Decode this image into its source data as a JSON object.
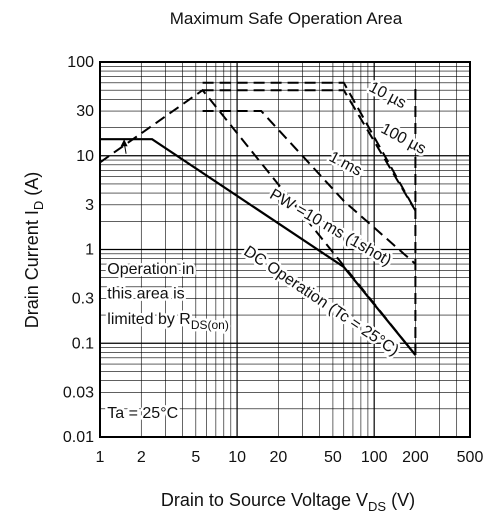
{
  "chart_data": {
    "type": "line",
    "title": "Maximum Safe Operation Area",
    "xlabel": {
      "main": "Drain to Source Voltage  V",
      "sub": "DS",
      "unit": "  (V)"
    },
    "ylabel": {
      "main": "Drain Current  I",
      "sub": "D",
      "unit": "  (A)"
    },
    "x_scale": "log",
    "y_scale": "log",
    "xlim": [
      1,
      500
    ],
    "ylim": [
      0.01,
      100
    ],
    "x_ticks": [
      {
        "v": 1,
        "label": "1"
      },
      {
        "v": 2,
        "label": "2"
      },
      {
        "v": 5,
        "label": "5"
      },
      {
        "v": 10,
        "label": "10"
      },
      {
        "v": 20,
        "label": "20"
      },
      {
        "v": 50,
        "label": "50"
      },
      {
        "v": 100,
        "label": "100"
      },
      {
        "v": 200,
        "label": "200"
      },
      {
        "v": 500,
        "label": "500"
      }
    ],
    "y_ticks": [
      {
        "v": 0.01,
        "label": "0.01"
      },
      {
        "v": 0.03,
        "label": "0.03"
      },
      {
        "v": 0.1,
        "label": "0.1"
      },
      {
        "v": 0.3,
        "label": "0.3"
      },
      {
        "v": 1,
        "label": "1"
      },
      {
        "v": 3,
        "label": "3"
      },
      {
        "v": 10,
        "label": "10"
      },
      {
        "v": 30,
        "label": "30"
      },
      {
        "v": 100,
        "label": "100"
      }
    ],
    "grid": true,
    "series": [
      {
        "name": "DC Operation (Tc = 25°C)",
        "style": "solid",
        "points": [
          [
            1,
            15
          ],
          [
            2.4,
            15
          ],
          [
            60,
            0.65
          ],
          [
            200,
            0.075
          ]
        ]
      },
      {
        "name": "PW =10 ms (1shot)",
        "style": "dashed",
        "points": [
          [
            1,
            8.5
          ],
          [
            5.6,
            50
          ],
          [
            200,
            0.075
          ]
        ]
      },
      {
        "name": "1 ms",
        "style": "dashed",
        "points": [
          [
            5.6,
            30
          ],
          [
            15,
            30
          ],
          [
            60,
            3.3
          ],
          [
            200,
            0.7
          ]
        ]
      },
      {
        "name": "100 µs",
        "style": "dashed",
        "points": [
          [
            5.6,
            50
          ],
          [
            60,
            50
          ],
          [
            200,
            2.6
          ]
        ]
      },
      {
        "name": "10 µs",
        "style": "dashed",
        "points": [
          [
            5.6,
            60
          ],
          [
            60,
            60
          ],
          [
            200,
            2.6
          ]
        ]
      },
      {
        "name": "V_DSS limit",
        "style": "dashed",
        "points": [
          [
            200,
            0.075
          ],
          [
            200,
            60
          ]
        ]
      }
    ],
    "annotations": [
      {
        "text": "10 µs",
        "x": 90,
        "y": 50,
        "angle": 28
      },
      {
        "text": "100 µs",
        "x": 110,
        "y": 18,
        "angle": 28
      },
      {
        "text": "1 ms",
        "x": 46,
        "y": 9,
        "angle": 28
      },
      {
        "text": "PW =10 ms (1shot)",
        "x": 17,
        "y": 3.6,
        "angle": 30
      },
      {
        "text": "DC Operation (Tc = 25°C)",
        "x": 11,
        "y": 0.9,
        "angle": 34
      },
      {
        "text": "Operation in",
        "x": 1.13,
        "y": 0.55,
        "angle": 0
      },
      {
        "text": "this area is",
        "x": 1.13,
        "y": 0.3,
        "angle": 0
      },
      {
        "text": "limited by R",
        "sub": "DS(on)",
        "x": 1.13,
        "y": 0.16,
        "angle": 0
      },
      {
        "text": "Ta = 25°C",
        "x": 1.13,
        "y": 0.016,
        "angle": 0
      }
    ]
  }
}
